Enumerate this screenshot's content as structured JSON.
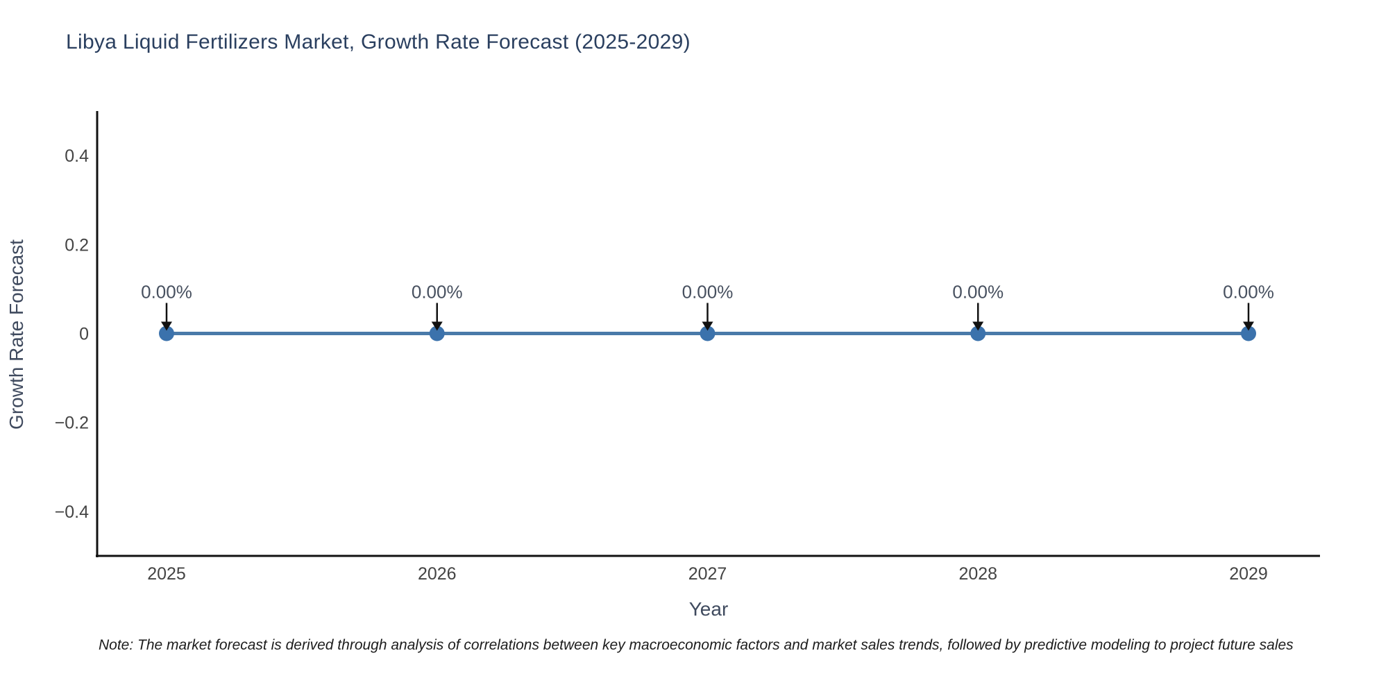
{
  "title": "Libya Liquid Fertilizers Market, Growth Rate Forecast (2025-2029)",
  "note": "Note: The market forecast is derived through analysis of correlations between key macroeconomic factors and market sales trends, followed by predictive modeling to project future sales",
  "chart_data": {
    "type": "line",
    "title": "Libya Liquid Fertilizers Market, Growth Rate Forecast (2025-2029)",
    "xlabel": "Year",
    "ylabel": "Growth Rate Forecast",
    "x": [
      2025,
      2026,
      2027,
      2028,
      2029
    ],
    "values": [
      0,
      0,
      0,
      0,
      0
    ],
    "point_labels": [
      "0.00%",
      "0.00%",
      "0.00%",
      "0.00%",
      "0.00%"
    ],
    "ylim": [
      -0.5,
      0.5
    ],
    "yticks": [
      {
        "value": 0.4,
        "label": "0.4"
      },
      {
        "value": 0.2,
        "label": "0.2"
      },
      {
        "value": 0,
        "label": "0"
      },
      {
        "value": -0.2,
        "label": "−0.2"
      },
      {
        "value": -0.4,
        "label": "−0.4"
      }
    ],
    "grid": false,
    "legend": "none",
    "colors": {
      "line": "#4a7aa9",
      "marker": "#3b72ac",
      "arrow": "#111111",
      "axis": "#111111",
      "tick_text": "#444444",
      "title_text": "#2a3f5f"
    }
  }
}
